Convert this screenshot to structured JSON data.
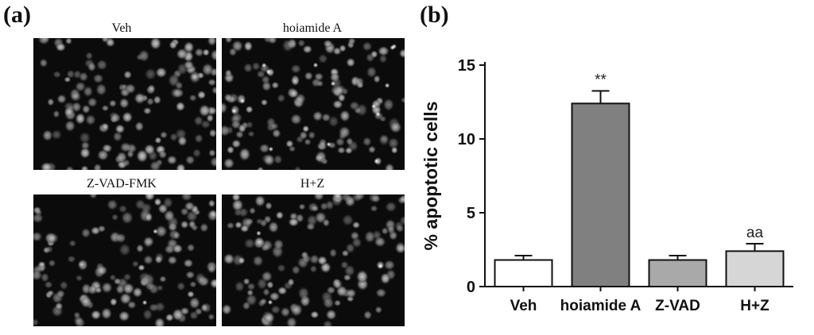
{
  "panel_a": {
    "letter": "(a)",
    "images": [
      {
        "caption": "Veh",
        "seed": 11,
        "bright_spots": 0
      },
      {
        "caption": "hoiamide A",
        "seed": 23,
        "bright_spots": 14
      },
      {
        "caption": "Z-VAD-FMK",
        "seed": 37,
        "bright_spots": 2
      },
      {
        "caption": "H+Z",
        "seed": 53,
        "bright_spots": 3
      }
    ]
  },
  "panel_b": {
    "letter": "(b)"
  },
  "chart_data": {
    "type": "bar",
    "categories": [
      "Veh",
      "hoiamide A",
      "Z-VAD",
      "H+Z"
    ],
    "values": [
      1.8,
      12.4,
      1.8,
      2.4
    ],
    "errors": [
      0.3,
      0.85,
      0.3,
      0.5
    ],
    "bar_colors": [
      "#ffffff",
      "#808080",
      "#a9a9a9",
      "#d6d6d6"
    ],
    "annotations": [
      "",
      "**",
      "",
      "aa"
    ],
    "ylabel": "% apoptotic cells",
    "ylim": [
      0,
      15
    ],
    "yticks": [
      0,
      5,
      10,
      15
    ],
    "grid": false
  }
}
